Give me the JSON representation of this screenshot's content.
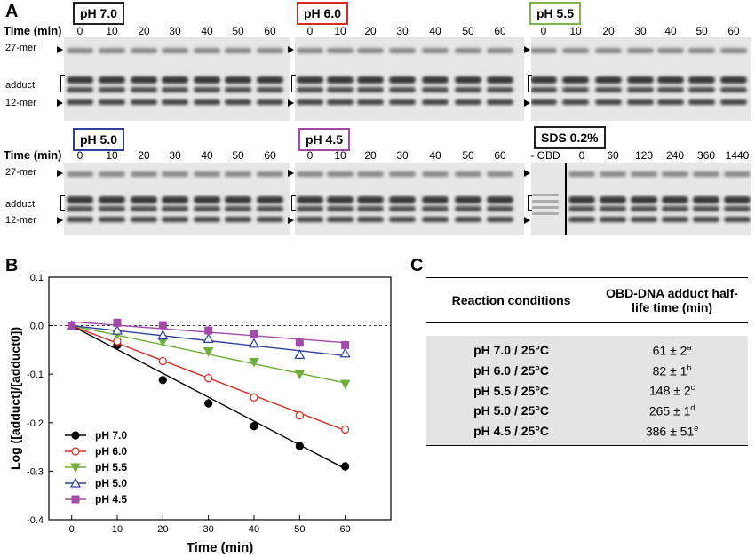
{
  "panels": {
    "A": "A",
    "B": "B",
    "C": "C"
  },
  "gels": [
    {
      "label": "pH 7.0",
      "color": "#222222",
      "time_label": "Time (min)",
      "times": [
        "0",
        "10",
        "20",
        "30",
        "40",
        "50",
        "60"
      ],
      "rows": [
        "27-mer",
        "adduct",
        "12-mer"
      ]
    },
    {
      "label": "pH 6.0",
      "color": "#d62a20",
      "time_label": "",
      "times": [
        "0",
        "10",
        "20",
        "30",
        "40",
        "50",
        "60"
      ],
      "rows": []
    },
    {
      "label": "pH 5.5",
      "color": "#7ab648",
      "time_label": "",
      "times": [
        "0",
        "10",
        "20",
        "30",
        "40",
        "50",
        "60"
      ],
      "rows": []
    },
    {
      "label": "pH 5.0",
      "color": "#2e3f9a",
      "time_label": "Time (min)",
      "times": [
        "0",
        "10",
        "20",
        "30",
        "40",
        "50",
        "60"
      ],
      "rows": [
        "27-mer",
        "adduct",
        "12-mer"
      ]
    },
    {
      "label": "pH 4.5",
      "color": "#a24aa8",
      "time_label": "",
      "times": [
        "0",
        "10",
        "20",
        "30",
        "40",
        "50",
        "60"
      ],
      "rows": []
    },
    {
      "label": "SDS 0.2%",
      "color": "#222222",
      "time_label": "",
      "times": [
        "- OBD",
        "0",
        "60",
        "120",
        "240",
        "360",
        "1440"
      ],
      "rows": []
    }
  ],
  "chart_data": {
    "type": "line",
    "xlabel": "Time (min)",
    "ylabel": "Log ([adduct]/[adduct0])",
    "xlim": [
      -5,
      70
    ],
    "ylim": [
      -0.4,
      0.1
    ],
    "xticks": [
      0,
      10,
      20,
      30,
      40,
      50,
      60
    ],
    "yticks": [
      0.1,
      0.0,
      -0.1,
      -0.2,
      -0.3,
      -0.4
    ],
    "x": [
      0,
      10,
      20,
      30,
      40,
      50,
      60
    ],
    "legend_position": "bottom-left",
    "series": [
      {
        "name": "pH 7.0",
        "color": "#000000",
        "marker": "filled-circle",
        "values": [
          0,
          -0.04,
          -0.112,
          -0.16,
          -0.207,
          -0.248,
          -0.29
        ],
        "fit": [
          0,
          -0.295
        ]
      },
      {
        "name": "pH 6.0",
        "color": "#d62a20",
        "marker": "open-circle",
        "values": [
          0,
          -0.032,
          -0.073,
          -0.108,
          -0.148,
          -0.185,
          -0.214
        ],
        "fit": [
          0,
          -0.216
        ]
      },
      {
        "name": "pH 5.5",
        "color": "#6fae3c",
        "marker": "filled-triangle-down",
        "values": [
          0,
          -0.018,
          -0.033,
          -0.053,
          -0.075,
          -0.1,
          -0.12
        ],
        "fit": [
          0,
          -0.118
        ]
      },
      {
        "name": "pH 5.0",
        "color": "#2e3f9a",
        "marker": "open-triangle-up",
        "values": [
          0,
          -0.01,
          -0.02,
          -0.027,
          -0.037,
          -0.06,
          -0.057
        ],
        "fit": [
          0,
          -0.062
        ]
      },
      {
        "name": "pH 4.5",
        "color": "#a24aa8",
        "marker": "filled-square",
        "values": [
          0,
          0.006,
          0.001,
          -0.01,
          -0.018,
          -0.035,
          -0.04
        ],
        "fit": [
          0.008,
          -0.035
        ]
      }
    ]
  },
  "table": {
    "headers": [
      "Reaction conditions",
      "OBD-DNA adduct half-life time (min)"
    ],
    "rows": [
      {
        "cond": "pH 7.0 / 25°C",
        "val": "61 ± 2",
        "sup": "a"
      },
      {
        "cond": "pH 6.0 / 25°C",
        "val": "82 ± 1",
        "sup": "b"
      },
      {
        "cond": "pH 5.5 / 25°C",
        "val": "148 ± 2",
        "sup": "c"
      },
      {
        "cond": "pH 5.0 / 25°C",
        "val": "265 ± 1",
        "sup": "d"
      },
      {
        "cond": "pH 4.5 / 25°C",
        "val": "386 ± 51",
        "sup": "e"
      }
    ]
  }
}
